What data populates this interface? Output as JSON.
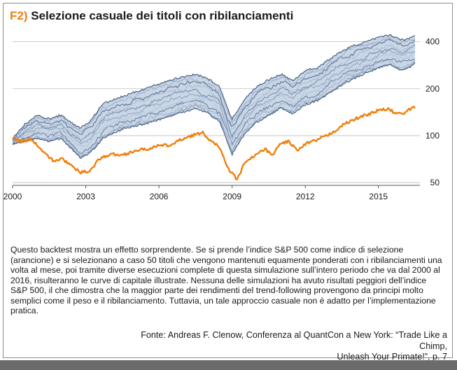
{
  "figure": {
    "label": "F2)",
    "title": "Selezione casuale dei titoli con ribilanciamenti"
  },
  "caption": "Questo backtest mostra un effetto sorprendente. Se si prende l’indice S&P 500 come indice di selezione (arancione) e si selezionano a caso 50 titoli che vengono mantenuti equamente ponderati con i ribilanciamenti una volta al mese, poi tramite diverse esecuzioni complete di questa simulazione sull’intero periodo che va dal 2000 al 2016, risulteranno le curve di capitale illustrate. Nessuna delle simulazioni ha avuto risultati peggiori dell’indice S&P 500, il che dimostra che la maggior parte dei rendimenti del trend-following provengono da principi molto semplici come il peso e il ribilanciamento. Tuttavia, un tale approccio casuale non è adatto per l’implementazione pratica.",
  "source": {
    "line1": "Fonte: Andreas F. Clenow, Conferenza al QuantCon a New York: “Trade Like a Chimp,",
    "line2": "Unleash Your Primate!”, p. 7"
  },
  "colors": {
    "accent": "#f07f09",
    "sp500": "#f07f09",
    "simulations_dark": "#4a6285",
    "simulations_light": "#c9d6e6"
  },
  "chart_data": {
    "type": "line",
    "y_scale": "log",
    "ylim": [
      48,
      480
    ],
    "xlim": [
      2000,
      2016.7
    ],
    "x_ticks": [
      "2000",
      "2003",
      "2006",
      "2009",
      "2012",
      "2015"
    ],
    "y_ticks": [
      "400",
      "200",
      "100",
      "50"
    ],
    "grid": "horizontal",
    "series": [
      {
        "role": "S&P 500 (arancione)",
        "color": "#f07f09",
        "x": [
          2000.0,
          2000.3,
          2000.7,
          2001.0,
          2001.3,
          2001.7,
          2002.0,
          2002.5,
          2002.8,
          2003.2,
          2003.5,
          2004.0,
          2004.5,
          2005.0,
          2005.5,
          2006.0,
          2006.5,
          2007.0,
          2007.5,
          2007.8,
          2008.2,
          2008.5,
          2008.8,
          2009.0,
          2009.2,
          2009.5,
          2010.0,
          2010.4,
          2010.6,
          2011.0,
          2011.3,
          2011.7,
          2012.0,
          2012.5,
          2013.0,
          2013.5,
          2014.0,
          2014.5,
          2015.0,
          2015.4,
          2015.7,
          2016.0,
          2016.3,
          2016.5
        ],
        "y": [
          97,
          92,
          95,
          88,
          78,
          68,
          72,
          62,
          58,
          60,
          70,
          76,
          75,
          80,
          82,
          86,
          87,
          96,
          102,
          104,
          90,
          84,
          62,
          58,
          52,
          66,
          76,
          82,
          74,
          89,
          92,
          80,
          88,
          94,
          102,
          116,
          127,
          136,
          145,
          148,
          140,
          137,
          148,
          152
        ]
      },
      {
        "role": "Simulazioni (limite superiore)",
        "color": "#4a6285",
        "x": [
          2000.0,
          2000.5,
          2001.0,
          2001.5,
          2002.0,
          2002.5,
          2002.8,
          2003.2,
          2003.7,
          2004.5,
          2005.5,
          2006.5,
          2007.5,
          2008.0,
          2008.5,
          2008.8,
          2009.0,
          2009.5,
          2010.0,
          2010.5,
          2011.0,
          2011.5,
          2012.0,
          2012.5,
          2013.0,
          2013.5,
          2014.0,
          2014.5,
          2015.0,
          2015.5,
          2015.8,
          2016.0,
          2016.3,
          2016.5
        ],
        "y": [
          95,
          118,
          135,
          128,
          136,
          118,
          112,
          125,
          160,
          178,
          202,
          228,
          248,
          232,
          205,
          150,
          128,
          170,
          205,
          228,
          248,
          225,
          262,
          272,
          310,
          348,
          378,
          400,
          425,
          442,
          420,
          410,
          425,
          440
        ]
      },
      {
        "role": "Simulazioni (limite inferiore)",
        "color": "#4a6285",
        "x": [
          2000.0,
          2000.5,
          2001.0,
          2001.5,
          2002.0,
          2002.5,
          2002.8,
          2003.2,
          2003.7,
          2004.5,
          2005.5,
          2006.5,
          2007.5,
          2008.0,
          2008.5,
          2008.8,
          2009.0,
          2009.5,
          2010.0,
          2010.5,
          2011.0,
          2011.5,
          2012.0,
          2012.5,
          2013.0,
          2013.5,
          2014.0,
          2014.5,
          2015.0,
          2015.5,
          2015.8,
          2016.0,
          2016.3,
          2016.5
        ],
        "y": [
          88,
          92,
          96,
          92,
          96,
          80,
          72,
          78,
          96,
          110,
          120,
          134,
          150,
          140,
          122,
          92,
          76,
          102,
          122,
          135,
          150,
          138,
          158,
          168,
          188,
          212,
          232,
          252,
          272,
          285,
          268,
          262,
          275,
          290
        ]
      }
    ]
  }
}
